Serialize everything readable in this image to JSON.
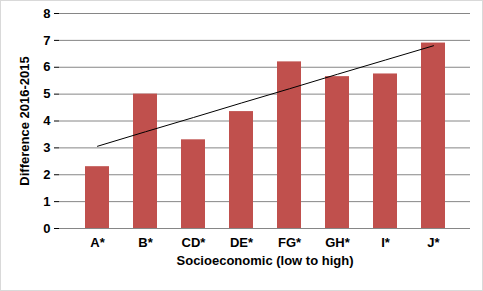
{
  "chart_data": {
    "type": "bar",
    "categories": [
      "A*",
      "B*",
      "CD*",
      "DE*",
      "FG*",
      "GH*",
      "I*",
      "J*"
    ],
    "values": [
      2.3,
      5.0,
      3.3,
      4.35,
      6.2,
      5.65,
      5.75,
      6.9
    ],
    "trendline": [
      3.06,
      3.6,
      4.13,
      4.67,
      5.2,
      5.74,
      6.27,
      6.8
    ],
    "color": "#c0504d",
    "x_label": "Socioeconomic (low to high)",
    "y_label": "Difference 2016-2015",
    "ylim": [
      0,
      8
    ],
    "yticks": [
      0,
      1,
      2,
      3,
      4,
      5,
      6,
      7,
      8
    ],
    "grid": true
  }
}
